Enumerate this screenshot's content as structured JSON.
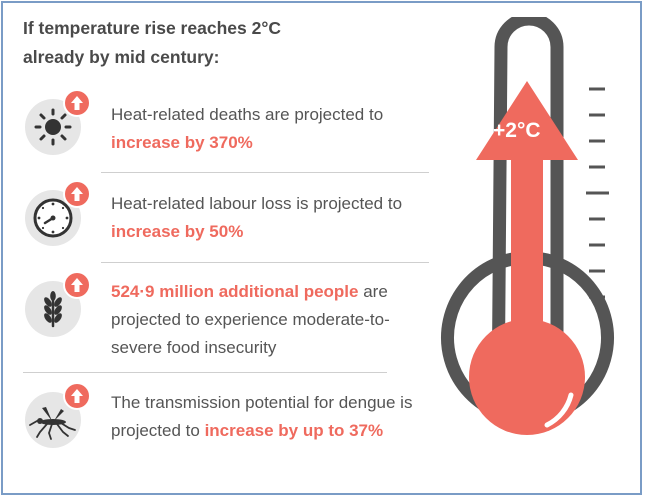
{
  "title": "If temperature rise reaches 2°C already by mid century:",
  "thermometer": {
    "label": "+2°C",
    "color": "#ef6a5e"
  },
  "items": [
    {
      "icon": "sun-icon",
      "text1": "Heat-related deaths are projected to ",
      "highlight": "increase by 370%",
      "text2": ""
    },
    {
      "icon": "clock-icon",
      "text1": "Heat-related labour loss is projected to ",
      "highlight": "increase by 50%",
      "text2": ""
    },
    {
      "icon": "wheat-icon",
      "text1": "",
      "highlight": "524·9 million additional people",
      "text2": " are projected to experience moderate-to-severe food insecurity"
    },
    {
      "icon": "mosquito-icon",
      "text1": "The transmission potential for dengue is projected to ",
      "highlight": "increase by up to 37%",
      "text2": ""
    }
  ],
  "colors": {
    "accent": "#ef6a5e",
    "text": "#555555",
    "title": "#4a4a4a",
    "icon_bg": "#e6e6e6",
    "border": "#7a9cc6"
  }
}
